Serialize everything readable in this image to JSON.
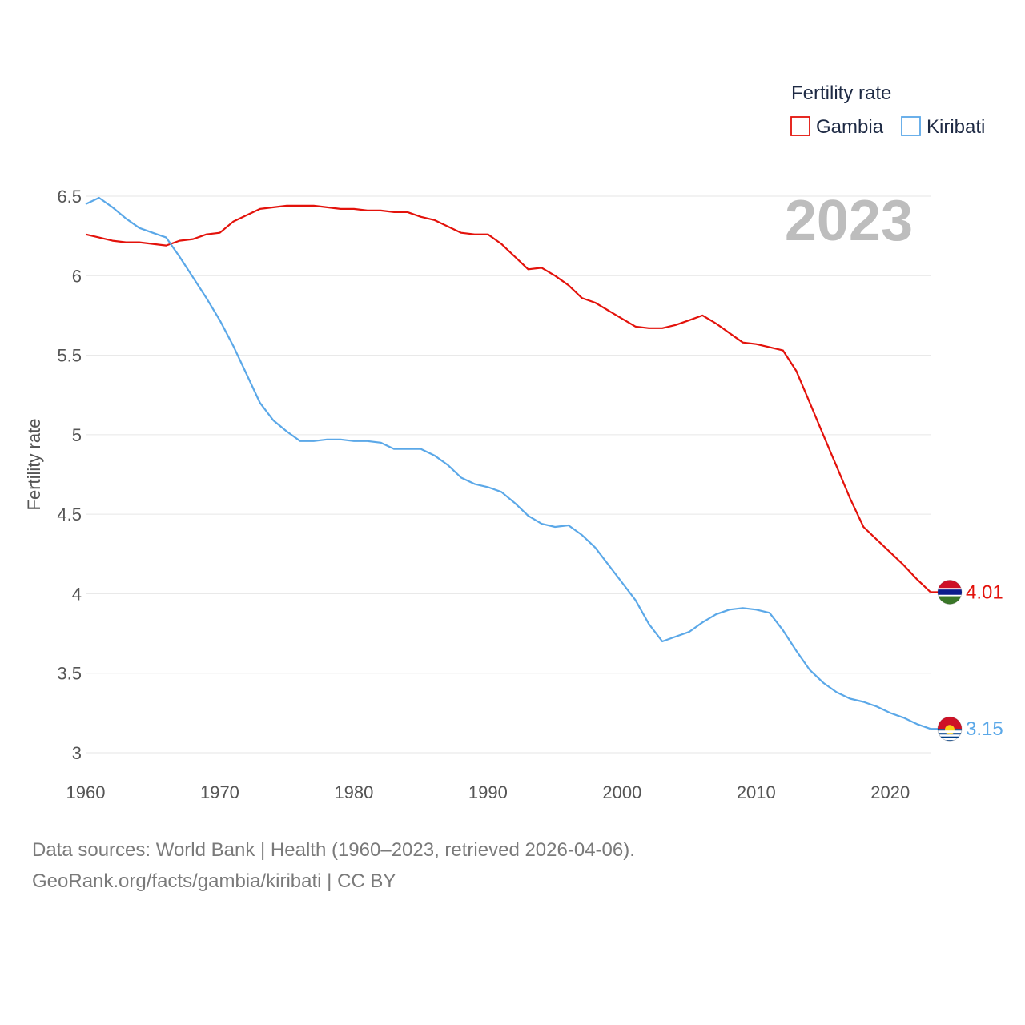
{
  "chart_data": {
    "type": "line",
    "legend_title": "Fertility rate",
    "ylabel": "Fertility rate",
    "xlabel": "",
    "current_year": "2023",
    "xlim": [
      1960,
      2023
    ],
    "ylim": [
      3,
      6.5
    ],
    "x_ticks": [
      1960,
      1970,
      1980,
      1990,
      2000,
      2010,
      2020
    ],
    "y_ticks": [
      3,
      3.5,
      4,
      4.5,
      5,
      5.5,
      6,
      6.5
    ],
    "y_tick_labels": [
      "3",
      "3.5",
      "4",
      "4.5",
      "5",
      "5.5",
      "6",
      "6.5"
    ],
    "legend_placement": "top-right",
    "x": [
      1960,
      1961,
      1962,
      1963,
      1964,
      1965,
      1966,
      1967,
      1968,
      1969,
      1970,
      1971,
      1972,
      1973,
      1974,
      1975,
      1976,
      1977,
      1978,
      1979,
      1980,
      1981,
      1982,
      1983,
      1984,
      1985,
      1986,
      1987,
      1988,
      1989,
      1990,
      1991,
      1992,
      1993,
      1994,
      1995,
      1996,
      1997,
      1998,
      1999,
      2000,
      2001,
      2002,
      2003,
      2004,
      2005,
      2006,
      2007,
      2008,
      2009,
      2010,
      2011,
      2012,
      2013,
      2014,
      2015,
      2016,
      2017,
      2018,
      2019,
      2020,
      2021,
      2022,
      2023
    ],
    "series": [
      {
        "name": "Gambia",
        "color": "#e3120b",
        "end_label": "4.01",
        "flag": "gambia-flag",
        "values": [
          6.26,
          6.24,
          6.22,
          6.21,
          6.21,
          6.2,
          6.19,
          6.22,
          6.23,
          6.26,
          6.27,
          6.34,
          6.38,
          6.42,
          6.43,
          6.44,
          6.44,
          6.44,
          6.43,
          6.42,
          6.42,
          6.41,
          6.41,
          6.4,
          6.4,
          6.37,
          6.35,
          6.31,
          6.27,
          6.26,
          6.26,
          6.2,
          6.12,
          6.04,
          6.05,
          6.0,
          5.94,
          5.86,
          5.83,
          5.78,
          5.73,
          5.68,
          5.67,
          5.67,
          5.69,
          5.72,
          5.75,
          5.7,
          5.64,
          5.58,
          5.57,
          5.55,
          5.53,
          5.4,
          5.2,
          5.0,
          4.8,
          4.6,
          4.42,
          4.34,
          4.26,
          4.18,
          4.09,
          4.01
        ]
      },
      {
        "name": "Kiribati",
        "color": "#5ba8e8",
        "end_label": "3.15",
        "flag": "kiribati-flag",
        "values": [
          6.45,
          6.49,
          6.43,
          6.36,
          6.3,
          6.27,
          6.24,
          6.12,
          5.99,
          5.86,
          5.72,
          5.56,
          5.38,
          5.2,
          5.09,
          5.02,
          4.96,
          4.96,
          4.97,
          4.97,
          4.96,
          4.96,
          4.95,
          4.91,
          4.91,
          4.91,
          4.87,
          4.81,
          4.73,
          4.69,
          4.67,
          4.64,
          4.57,
          4.49,
          4.44,
          4.42,
          4.43,
          4.37,
          4.29,
          4.18,
          4.07,
          3.96,
          3.81,
          3.7,
          3.73,
          3.76,
          3.82,
          3.87,
          3.9,
          3.91,
          3.9,
          3.88,
          3.77,
          3.64,
          3.52,
          3.44,
          3.38,
          3.34,
          3.32,
          3.29,
          3.25,
          3.22,
          3.18,
          3.15
        ]
      }
    ]
  },
  "footer": {
    "line1": "Data sources: World Bank | Health (1960–2023, retrieved 2026-04-06).",
    "line2": "GeoRank.org/facts/gambia/kiribati | CC BY"
  }
}
